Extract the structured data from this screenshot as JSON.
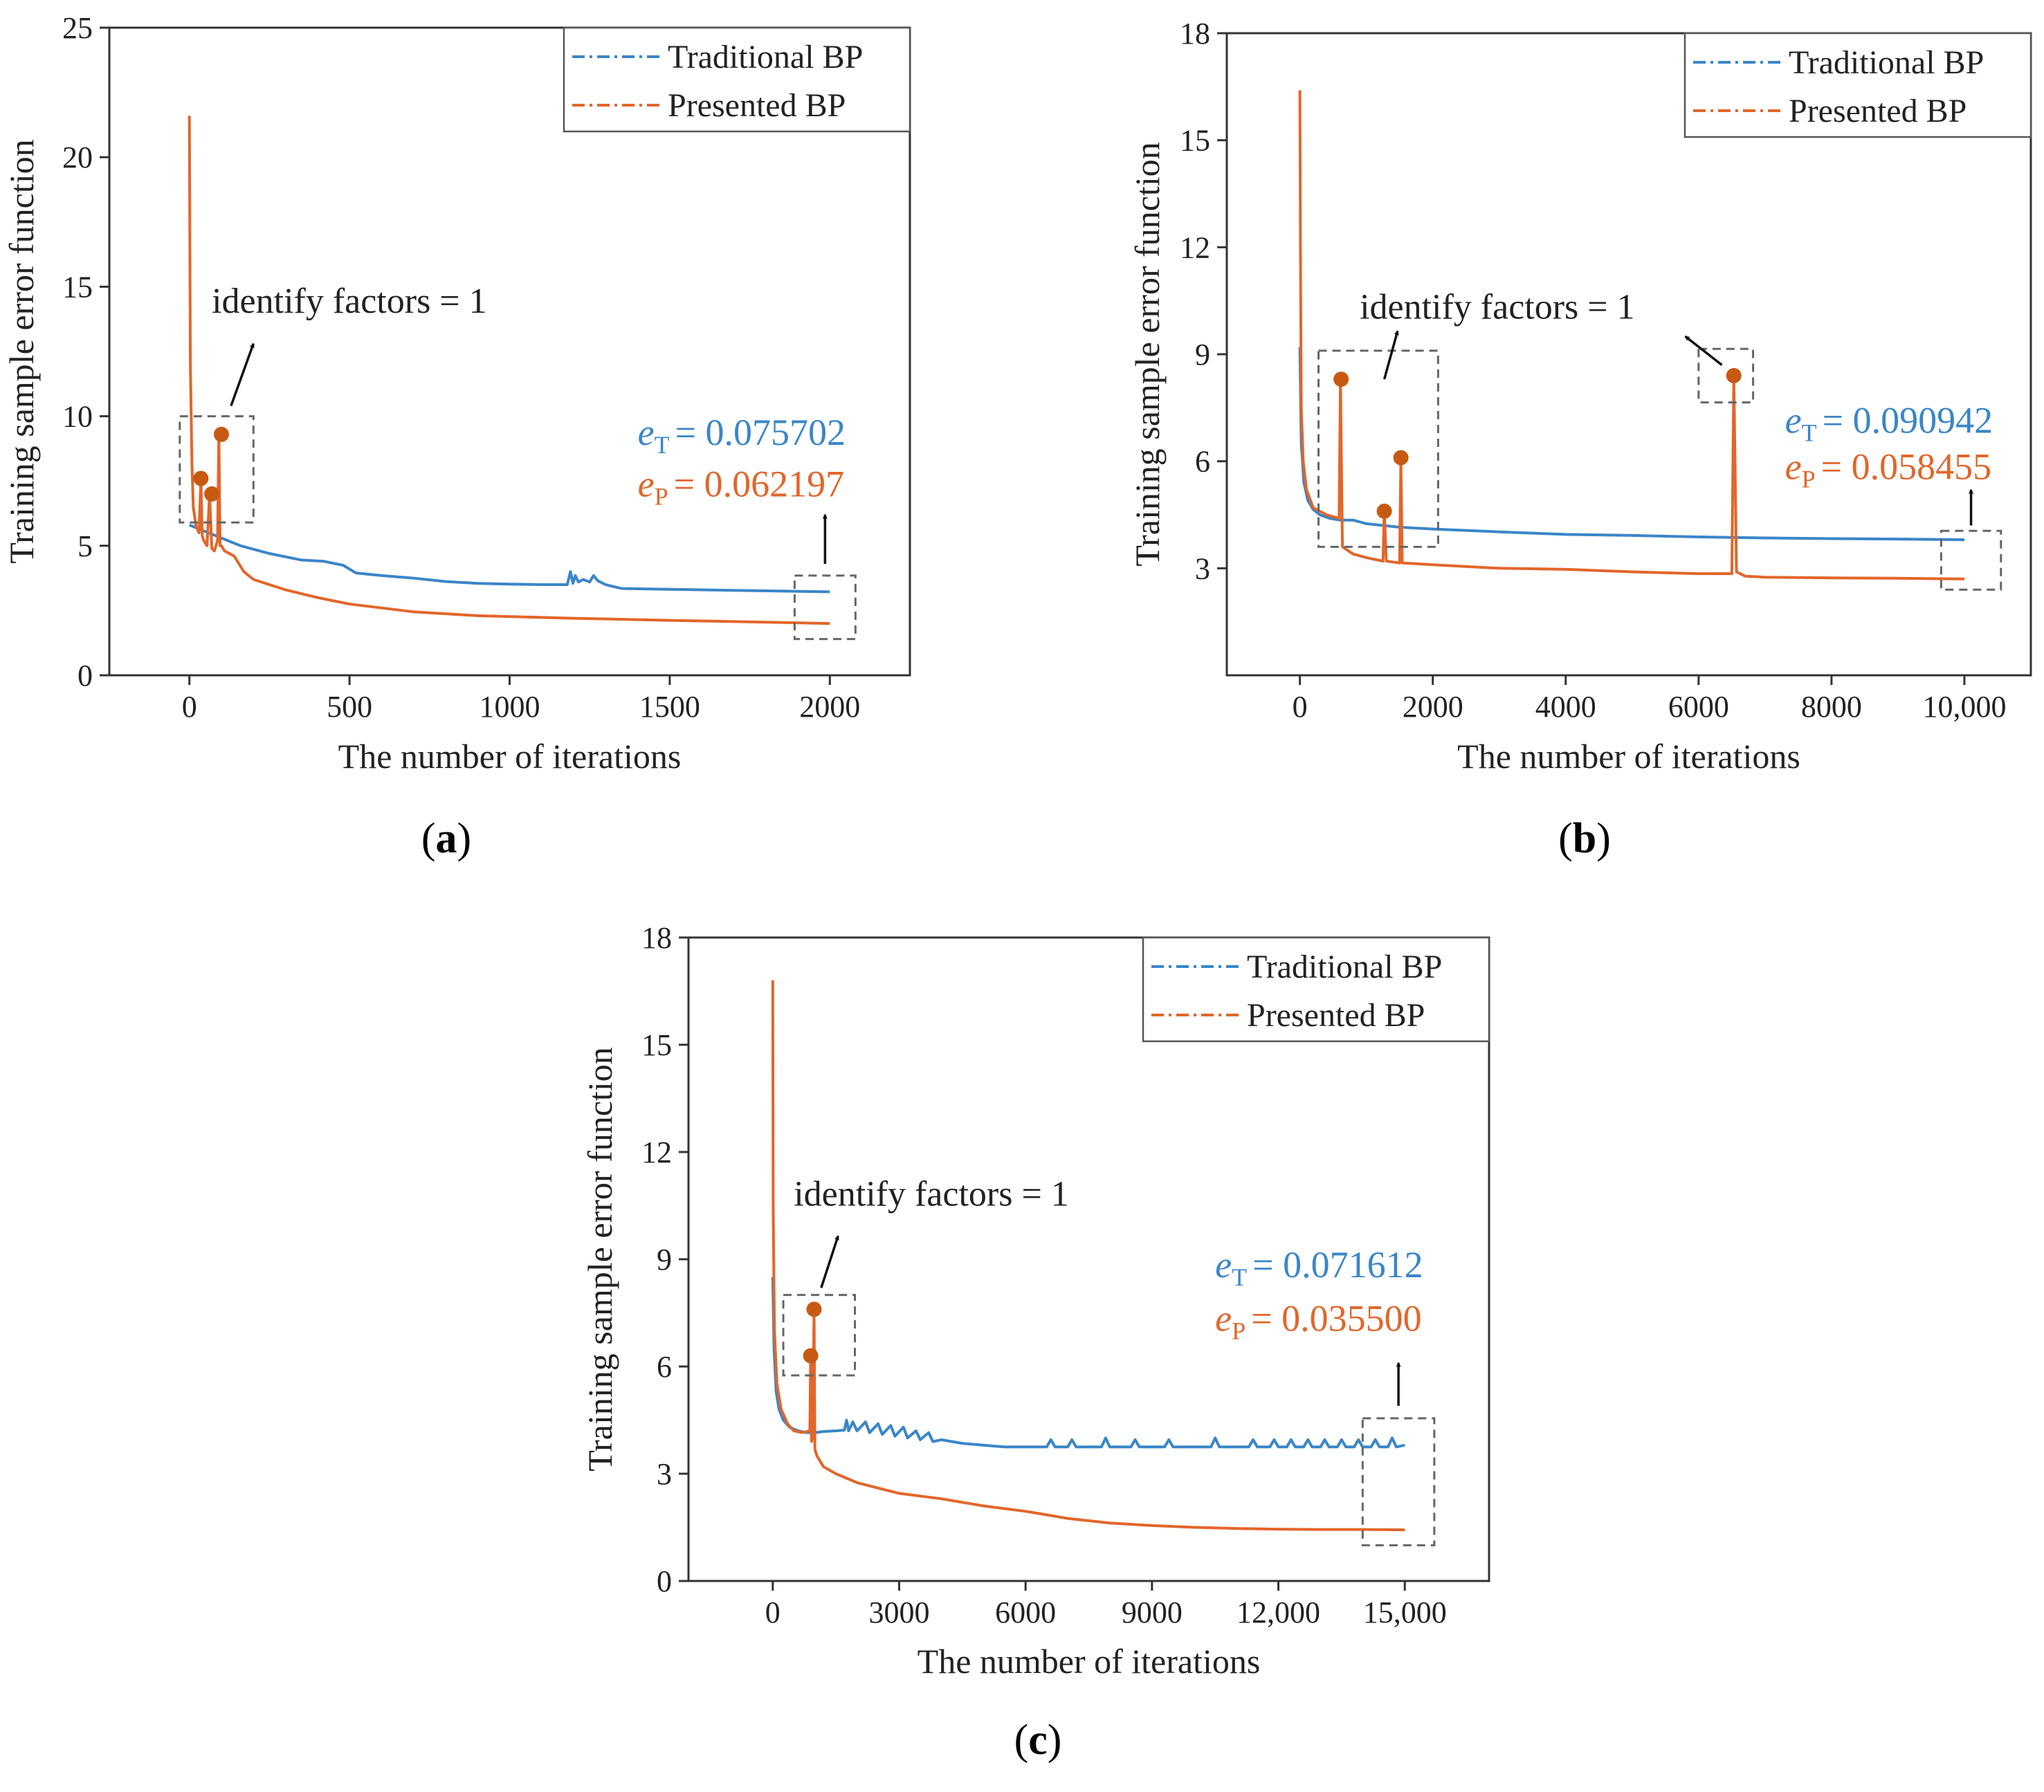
{
  "colors": {
    "traditional": "#3a86c8",
    "presented": "#e2662a",
    "marker": "#c65a12",
    "axis": "#333333",
    "box": "#666666"
  },
  "chart_data": [
    {
      "id": "a",
      "type": "line",
      "caption": {
        "open": "(",
        "letter": "a",
        "close": ")"
      },
      "xlabel": "The number of iterations",
      "ylabel": "Training sample error function",
      "xlim": [
        -250,
        2250
      ],
      "ylim": [
        0,
        25
      ],
      "xticks": [
        0,
        500,
        1000,
        1500,
        2000
      ],
      "xtick_labels": [
        "0",
        "500",
        "1000",
        "1500",
        "2000"
      ],
      "yticks": [
        0,
        5,
        10,
        15,
        20,
        25
      ],
      "ytick_labels": [
        "0",
        "5",
        "10",
        "15",
        "20",
        "25"
      ],
      "legend": {
        "position": "top-right",
        "entries": [
          "Traditional BP",
          "Presented BP"
        ]
      },
      "series": [
        {
          "name": "Traditional BP",
          "x": [
            0,
            40,
            100,
            160,
            250,
            350,
            420,
            480,
            520,
            600,
            700,
            800,
            900,
            1000,
            1100,
            1180,
            1190,
            1198,
            1205,
            1215,
            1230,
            1250,
            1262,
            1275,
            1300,
            1350,
            1500,
            1700,
            2000
          ],
          "y": [
            5.8,
            5.6,
            5.3,
            5.0,
            4.7,
            4.45,
            4.4,
            4.25,
            3.95,
            3.85,
            3.75,
            3.62,
            3.55,
            3.52,
            3.5,
            3.5,
            4.0,
            3.55,
            3.85,
            3.6,
            3.7,
            3.6,
            3.85,
            3.65,
            3.5,
            3.35,
            3.32,
            3.28,
            3.22
          ]
        },
        {
          "name": "Presented BP",
          "x": [
            0,
            3,
            8,
            12,
            20,
            30,
            36,
            40,
            45,
            55,
            63,
            70,
            78,
            88,
            92,
            96,
            100,
            110,
            140,
            170,
            200,
            300,
            400,
            500,
            700,
            900,
            1200,
            1500,
            1800,
            2000
          ],
          "y": [
            21.6,
            12.0,
            8.2,
            6.5,
            5.8,
            5.5,
            7.6,
            5.4,
            5.2,
            5.0,
            7.0,
            4.9,
            4.8,
            5.2,
            9.3,
            5.0,
            5.0,
            4.8,
            4.6,
            4.0,
            3.7,
            3.3,
            3.0,
            2.75,
            2.45,
            2.3,
            2.2,
            2.12,
            2.05,
            2.0
          ]
        }
      ],
      "markers": [
        {
          "x": 36,
          "y": 7.6
        },
        {
          "x": 70,
          "y": 7.0
        },
        {
          "x": 100,
          "y": 9.3
        }
      ],
      "boxes": [
        {
          "x0": -30,
          "x1": 200,
          "y0": 5.9,
          "y1": 10.0
        },
        {
          "x0": 1890,
          "x1": 2080,
          "y0": 1.4,
          "y1": 3.85
        }
      ],
      "arrows": [
        {
          "x0": 130,
          "y0": 10.4,
          "x1": 200,
          "y1": 12.8
        },
        {
          "x0": 1985,
          "y0": 4.3,
          "x1": 1985,
          "y1": 6.2
        }
      ],
      "annotation": {
        "text": "identify factors = 1",
        "x": 70,
        "y": 14.0
      },
      "errors": {
        "eT_var": "e",
        "eT_sub": "T",
        "eT_value": "=  0.075702",
        "eP_var": "e",
        "eP_sub": "P",
        "eP_value": "= 0.062197",
        "x": 1400,
        "y1": 8.9,
        "y2": 6.9
      }
    },
    {
      "id": "b",
      "type": "line",
      "caption": {
        "open": "(",
        "letter": "b",
        "close": ")"
      },
      "xlabel": "The number of iterations",
      "ylabel": "Training sample error function",
      "xlim": [
        -1100,
        11000
      ],
      "ylim": [
        0,
        18
      ],
      "xticks": [
        0,
        2000,
        4000,
        6000,
        8000,
        10000
      ],
      "xtick_labels": [
        "0",
        "2000",
        "4000",
        "6000",
        "8000",
        "10,000"
      ],
      "yticks": [
        3,
        6,
        9,
        12,
        15,
        18
      ],
      "ytick_labels": [
        "3",
        "6",
        "9",
        "12",
        "15",
        "18"
      ],
      "legend": {
        "position": "top-right",
        "entries": [
          "Traditional BP",
          "Presented BP"
        ]
      },
      "series": [
        {
          "name": "Traditional BP",
          "x": [
            0,
            20,
            60,
            120,
            200,
            300,
            450,
            600,
            800,
            1000,
            1500,
            2000,
            3000,
            4000,
            5000,
            6000,
            7000,
            8000,
            9000,
            10000
          ],
          "y": [
            9.2,
            6.5,
            5.4,
            4.9,
            4.65,
            4.5,
            4.4,
            4.35,
            4.35,
            4.25,
            4.15,
            4.1,
            4.02,
            3.95,
            3.92,
            3.88,
            3.85,
            3.83,
            3.82,
            3.8
          ]
        },
        {
          "name": "Presented BP",
          "x": [
            0,
            8,
            20,
            50,
            100,
            200,
            400,
            590,
            610,
            640,
            800,
            1000,
            1250,
            1270,
            1300,
            1500,
            1520,
            1540,
            2000,
            3000,
            4000,
            5000,
            6000,
            6500,
            6530,
            6570,
            6700,
            7000,
            8000,
            9000,
            10000
          ],
          "y": [
            16.4,
            12.0,
            7.5,
            6.0,
            5.2,
            4.7,
            4.5,
            4.4,
            8.3,
            3.6,
            3.4,
            3.3,
            3.2,
            4.6,
            3.2,
            3.15,
            6.1,
            3.15,
            3.1,
            3.0,
            2.97,
            2.9,
            2.85,
            2.85,
            8.4,
            2.9,
            2.78,
            2.75,
            2.73,
            2.72,
            2.7
          ]
        }
      ],
      "markers": [
        {
          "x": 620,
          "y": 8.3
        },
        {
          "x": 1270,
          "y": 4.6
        },
        {
          "x": 1520,
          "y": 6.1
        },
        {
          "x": 6530,
          "y": 8.4
        }
      ],
      "boxes": [
        {
          "x0": 280,
          "x1": 2080,
          "y0": 3.6,
          "y1": 9.1
        },
        {
          "x0": 6000,
          "x1": 6820,
          "y0": 7.65,
          "y1": 9.15
        },
        {
          "x0": 9650,
          "x1": 10550,
          "y0": 2.4,
          "y1": 4.05
        }
      ],
      "arrows": [
        {
          "x0": 1270,
          "y0": 8.3,
          "x1": 1470,
          "y1": 9.65
        },
        {
          "x0": 6350,
          "y0": 8.7,
          "x1": 5800,
          "y1": 9.5
        },
        {
          "x0": 10100,
          "y0": 4.2,
          "x1": 10100,
          "y1": 5.2
        }
      ],
      "annotation": {
        "text": "identify factors = 1",
        "x": 900,
        "y": 10.0
      },
      "errors": {
        "eT_var": "e",
        "eT_sub": "T",
        "eT_value": "=  0.090942",
        "eP_var": "e",
        "eP_sub": "P",
        "eP_value": "= 0.058455",
        "x": 7300,
        "y1": 6.8,
        "y2": 5.5
      }
    },
    {
      "id": "c",
      "type": "line",
      "caption": {
        "open": "(",
        "letter": "c",
        "close": ")"
      },
      "xlabel": "The number of iterations",
      "ylabel": "Training sample error function",
      "xlim": [
        -2000,
        17000
      ],
      "ylim": [
        0,
        18
      ],
      "xticks": [
        0,
        3000,
        6000,
        9000,
        12000,
        15000
      ],
      "xtick_labels": [
        "0",
        "3000",
        "6000",
        "9000",
        "12,000",
        "15,000"
      ],
      "yticks": [
        0,
        3,
        6,
        9,
        12,
        15,
        18
      ],
      "ytick_labels": [
        "0",
        "3",
        "6",
        "9",
        "12",
        "15",
        "18"
      ],
      "legend": {
        "position": "top-right",
        "entries": [
          "Traditional BP",
          "Presented BP"
        ]
      },
      "series": [
        {
          "name": "Traditional BP",
          "x": [
            0,
            30,
            80,
            150,
            250,
            400,
            600,
            800,
            1000,
            1200,
            1500,
            1700,
            1750,
            1800,
            1900,
            2000,
            2200,
            2300,
            2500,
            2600,
            2800,
            2900,
            3100,
            3200,
            3400,
            3500,
            3700,
            3800,
            4000,
            4500,
            5000,
            5500,
            6000,
            6500,
            6600,
            6700,
            7000,
            7100,
            7200,
            7500,
            7800,
            7900,
            8000,
            8500,
            8600,
            8700,
            9000,
            9300,
            9400,
            9500,
            10000,
            10400,
            10500,
            10600,
            11000,
            11300,
            11400,
            11500,
            11800,
            11900,
            12000,
            12200,
            12300,
            12400,
            12600,
            12700,
            12800,
            13000,
            13100,
            13200,
            13400,
            13500,
            13600,
            13800,
            13900,
            14000,
            14200,
            14300,
            14400,
            14600,
            14700,
            14800,
            15000
          ],
          "y": [
            8.5,
            6.5,
            5.3,
            4.8,
            4.5,
            4.3,
            4.2,
            4.15,
            4.15,
            4.18,
            4.2,
            4.22,
            4.5,
            4.2,
            4.45,
            4.2,
            4.45,
            4.15,
            4.4,
            4.1,
            4.35,
            4.05,
            4.3,
            4.0,
            4.2,
            3.95,
            4.15,
            3.9,
            3.95,
            3.85,
            3.8,
            3.75,
            3.75,
            3.75,
            3.95,
            3.75,
            3.75,
            3.95,
            3.75,
            3.75,
            3.75,
            4.0,
            3.75,
            3.75,
            3.95,
            3.75,
            3.75,
            3.75,
            3.95,
            3.75,
            3.75,
            3.75,
            4.0,
            3.75,
            3.75,
            3.75,
            3.95,
            3.75,
            3.75,
            3.95,
            3.75,
            3.75,
            3.95,
            3.75,
            3.75,
            3.95,
            3.75,
            3.75,
            3.95,
            3.75,
            3.75,
            3.95,
            3.75,
            3.75,
            3.95,
            3.75,
            3.75,
            3.95,
            3.75,
            3.75,
            4.0,
            3.75,
            3.8
          ]
        },
        {
          "name": "Presented BP",
          "x": [
            0,
            10,
            40,
            100,
            200,
            350,
            500,
            700,
            880,
            900,
            920,
            950,
            980,
            1000,
            1020,
            1050,
            1200,
            1500,
            2000,
            3000,
            4000,
            5000,
            6000,
            6500,
            7000,
            8000,
            9000,
            10000,
            11000,
            12000,
            13000,
            14000,
            15000
          ],
          "y": [
            16.8,
            10.5,
            7.0,
            5.5,
            4.8,
            4.4,
            4.2,
            4.15,
            4.2,
            6.3,
            3.9,
            4.0,
            7.6,
            3.7,
            3.6,
            3.5,
            3.2,
            3.0,
            2.75,
            2.45,
            2.3,
            2.1,
            1.95,
            1.85,
            1.75,
            1.62,
            1.55,
            1.5,
            1.47,
            1.45,
            1.44,
            1.44,
            1.43
          ]
        }
      ],
      "markers": [
        {
          "x": 900,
          "y": 6.3
        },
        {
          "x": 980,
          "y": 7.6
        }
      ],
      "boxes": [
        {
          "x0": 250,
          "x1": 1950,
          "y0": 5.75,
          "y1": 8.0
        },
        {
          "x0": 14000,
          "x1": 15700,
          "y0": 1.0,
          "y1": 4.55
        }
      ],
      "arrows": [
        {
          "x0": 1150,
          "y0": 8.2,
          "x1": 1550,
          "y1": 9.65
        },
        {
          "x0": 14850,
          "y0": 4.9,
          "x1": 14850,
          "y1": 6.1
        }
      ],
      "annotation": {
        "text": "identify factors = 1",
        "x": 500,
        "y": 10.5
      },
      "errors": {
        "eT_var": "e",
        "eT_sub": "T",
        "eT_value": "=  0.071612",
        "eP_var": "e",
        "eP_sub": "P",
        "eP_value": "= 0.035500",
        "x": 10500,
        "y1": 8.5,
        "y2": 7.0
      }
    }
  ]
}
